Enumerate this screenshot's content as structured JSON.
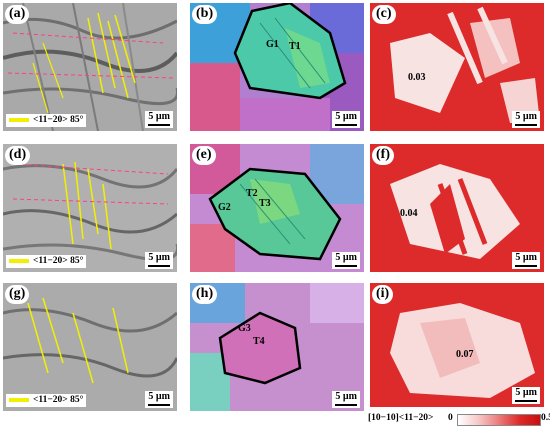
{
  "panels": [
    {
      "label": "(a)",
      "type": "grayscale",
      "scale": "5 µm",
      "legend": "<11−20> 85°"
    },
    {
      "label": "(b)",
      "type": "ipf",
      "scale": "5 µm",
      "grains": [
        "G1",
        "T1"
      ]
    },
    {
      "label": "(c)",
      "type": "schmid",
      "scale": "5 µm",
      "value": "0.03"
    },
    {
      "label": "(d)",
      "type": "grayscale",
      "scale": "5 µm",
      "legend": "<11−20> 85°"
    },
    {
      "label": "(e)",
      "type": "ipf",
      "scale": "5 µm",
      "grains": [
        "G2",
        "T2",
        "T3"
      ]
    },
    {
      "label": "(f)",
      "type": "schmid",
      "scale": "5 µm",
      "value": "0.04"
    },
    {
      "label": "(g)",
      "type": "grayscale",
      "scale": "5 µm",
      "legend": "<11−20> 85°"
    },
    {
      "label": "(h)",
      "type": "ipf",
      "scale": "5 µm",
      "grains": [
        "G3",
        "T4"
      ]
    },
    {
      "label": "(i)",
      "type": "schmid",
      "scale": "5 µm",
      "value": "0.07"
    }
  ],
  "colorbar": {
    "title": "[10−10]<11−20>",
    "min": "0",
    "max": "0.5"
  },
  "colors": {
    "boundary_yellow": "#f2f000",
    "schmid_red": "#dd2a2a",
    "grain_outline": "#000000"
  }
}
